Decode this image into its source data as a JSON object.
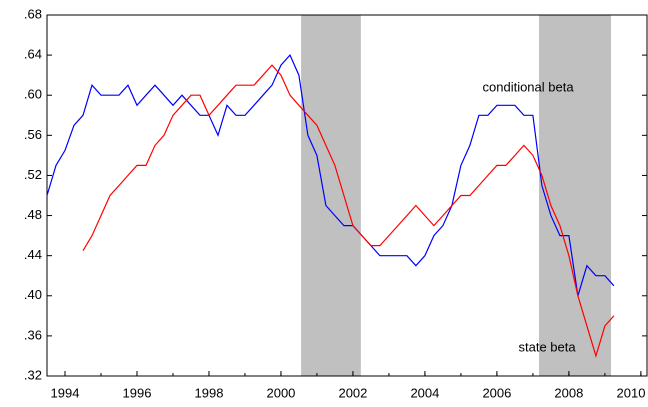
{
  "chart_data": {
    "type": "line",
    "x": [
      1993.5,
      1993.75,
      1994,
      1994.25,
      1994.5,
      1994.75,
      1995,
      1995.25,
      1995.5,
      1995.75,
      1996,
      1996.25,
      1996.5,
      1996.75,
      1997,
      1997.25,
      1997.5,
      1997.75,
      1998,
      1998.25,
      1998.5,
      1998.75,
      1999,
      1999.25,
      1999.5,
      1999.75,
      2000,
      2000.25,
      2000.5,
      2000.75,
      2001,
      2001.25,
      2001.5,
      2001.75,
      2002,
      2002.25,
      2002.5,
      2002.75,
      2003,
      2003.25,
      2003.5,
      2003.75,
      2004,
      2004.25,
      2004.5,
      2004.75,
      2005,
      2005.25,
      2005.5,
      2005.75,
      2006,
      2006.25,
      2006.5,
      2006.75,
      2007,
      2007.25,
      2007.5,
      2007.75,
      2008,
      2008.25,
      2008.5,
      2008.75,
      2009,
      2009.25
    ],
    "series": [
      {
        "name": "conditional beta",
        "color": "#0000ff",
        "values": [
          0.5,
          0.53,
          0.545,
          0.57,
          0.58,
          0.61,
          0.6,
          0.6,
          0.6,
          0.61,
          0.59,
          0.6,
          0.61,
          0.6,
          0.59,
          0.6,
          0.59,
          0.58,
          0.58,
          0.56,
          0.59,
          0.58,
          0.58,
          0.59,
          0.6,
          0.61,
          0.63,
          0.64,
          0.62,
          0.56,
          0.54,
          0.49,
          0.48,
          0.47,
          0.47,
          0.46,
          0.45,
          0.44,
          0.44,
          0.44,
          0.44,
          0.43,
          0.44,
          0.46,
          0.47,
          0.49,
          0.53,
          0.55,
          0.58,
          0.58,
          0.59,
          0.59,
          0.59,
          0.58,
          0.58,
          0.51,
          0.48,
          0.46,
          0.46,
          0.4,
          0.43,
          0.42,
          0.42,
          0.41
        ]
      },
      {
        "name": "state beta",
        "color": "#ff0000",
        "values": [
          null,
          null,
          null,
          null,
          0.445,
          0.46,
          0.48,
          0.5,
          0.51,
          0.52,
          0.53,
          0.53,
          0.55,
          0.56,
          0.58,
          0.59,
          0.6,
          0.6,
          0.58,
          0.59,
          0.6,
          0.61,
          0.61,
          0.61,
          0.62,
          0.63,
          0.62,
          0.6,
          0.59,
          0.58,
          0.57,
          0.55,
          0.53,
          0.5,
          0.47,
          0.46,
          0.45,
          0.45,
          0.46,
          0.47,
          0.48,
          0.49,
          0.48,
          0.47,
          0.48,
          0.49,
          0.5,
          0.5,
          0.51,
          0.52,
          0.53,
          0.53,
          0.54,
          0.55,
          0.54,
          0.52,
          0.49,
          0.47,
          0.44,
          0.4,
          0.37,
          0.34,
          0.37,
          0.38
        ]
      }
    ],
    "annotations": [
      {
        "text": "conditional beta",
        "x": 2005.6,
        "y": 0.607
      },
      {
        "text": "state beta",
        "x": 2006.6,
        "y": 0.348
      }
    ],
    "shaded": [
      [
        2000.56,
        2002.22
      ],
      [
        2007.17,
        2009.17
      ]
    ],
    "xlim": [
      1993.5,
      2010.17
    ],
    "xticks": [
      1994,
      1996,
      1998,
      2000,
      2002,
      2004,
      2006,
      2008,
      2010
    ],
    "ylim": [
      0.32,
      0.68
    ],
    "yticks": [
      {
        "value": 0.32,
        "label": ".32"
      },
      {
        "value": 0.36,
        "label": ".36"
      },
      {
        "value": 0.4,
        "label": ".40"
      },
      {
        "value": 0.44,
        "label": ".44"
      },
      {
        "value": 0.48,
        "label": ".48"
      },
      {
        "value": 0.52,
        "label": ".52"
      },
      {
        "value": 0.56,
        "label": ".56"
      },
      {
        "value": 0.6,
        "label": ".60"
      },
      {
        "value": 0.64,
        "label": ".64"
      },
      {
        "value": 0.68,
        "label": ".68"
      }
    ],
    "grid": false
  }
}
